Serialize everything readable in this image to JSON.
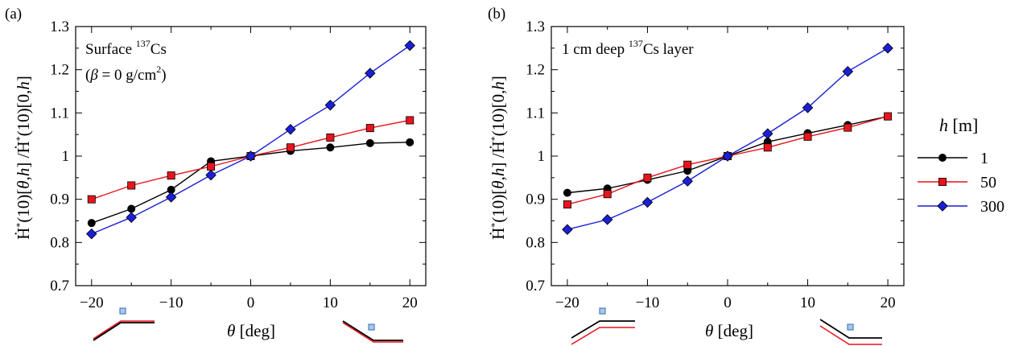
{
  "colors": {
    "s1": "#000000",
    "s50": "#e8141c",
    "s300": "#1a1fd6",
    "axis": "#000000",
    "terrain_black": "#000000",
    "terrain_red": "#e8141c",
    "detector_fill": "#a9c8e8",
    "detector_stroke": "#4a7fc0"
  },
  "legend": {
    "title_italic": "h",
    "title_unit": " [m]",
    "entries": [
      {
        "label": "1",
        "marker": "circle",
        "color": "#000000"
      },
      {
        "label": "50",
        "marker": "square",
        "color": "#e8141c"
      },
      {
        "label": "300",
        "marker": "diamond",
        "color": "#1a1fd6"
      }
    ]
  },
  "ylabel": {
    "part1": "Ḣ",
    "sup": "*",
    "part2": "(10)[",
    "theta": "θ",
    "part3": ",",
    "h1": "h",
    "part4": "] /",
    "part5": "Ḣ",
    "sup2": "*",
    "part6": "(10)[0,",
    "h2": "h",
    "part7": "]"
  },
  "xlabel": {
    "symbol": "θ",
    "unit": " [deg]"
  },
  "chart_data": [
    {
      "type": "line",
      "panel_label": "(a)",
      "annotation_line1_pre": "Surface ",
      "annotation_line1_sup": "137",
      "annotation_line1_post": "Cs",
      "annotation_line2_pre": "(",
      "annotation_line2_beta": "β",
      "annotation_line2_mid": " = 0 g/cm",
      "annotation_line2_sup": "2",
      "annotation_line2_post": ")",
      "x": [
        -20,
        -15,
        -10,
        -5,
        0,
        5,
        10,
        15,
        20
      ],
      "xlim": [
        -22,
        22
      ],
      "ylim": [
        0.7,
        1.3
      ],
      "xticks": [
        "−20",
        "−10",
        "0",
        "10",
        "20"
      ],
      "yticks": [
        "0.7",
        "0.8",
        "0.9",
        "1",
        "1.1",
        "1.2",
        "1.3"
      ],
      "series": [
        {
          "name": "1",
          "values": [
            0.845,
            0.878,
            0.922,
            0.988,
            1.0,
            1.012,
            1.02,
            1.03,
            1.032
          ]
        },
        {
          "name": "50",
          "values": [
            0.9,
            0.932,
            0.955,
            0.976,
            1.0,
            1.02,
            1.043,
            1.065,
            1.083
          ]
        },
        {
          "name": "300",
          "values": [
            0.82,
            0.858,
            0.905,
            0.956,
            1.0,
            1.062,
            1.118,
            1.192,
            1.256
          ]
        }
      ]
    },
    {
      "type": "line",
      "panel_label": "(b)",
      "annotation_line1_pre": "1 cm deep ",
      "annotation_line1_sup": "137",
      "annotation_line1_post": "Cs layer",
      "x": [
        -20,
        -15,
        -10,
        -5,
        0,
        5,
        10,
        15,
        20
      ],
      "xlim": [
        -22,
        22
      ],
      "ylim": [
        0.7,
        1.3
      ],
      "xticks": [
        "−20",
        "−10",
        "0",
        "10",
        "20"
      ],
      "yticks": [
        "0.7",
        "0.8",
        "0.9",
        "1",
        "1.1",
        "1.2",
        "1.3"
      ],
      "series": [
        {
          "name": "1",
          "values": [
            0.915,
            0.925,
            0.945,
            0.966,
            1.0,
            1.033,
            1.053,
            1.072,
            1.092
          ]
        },
        {
          "name": "50",
          "values": [
            0.888,
            0.912,
            0.95,
            0.98,
            1.0,
            1.02,
            1.045,
            1.066,
            1.092
          ]
        },
        {
          "name": "300",
          "values": [
            0.83,
            0.853,
            0.893,
            0.942,
            1.0,
            1.052,
            1.112,
            1.196,
            1.25
          ]
        }
      ]
    }
  ]
}
